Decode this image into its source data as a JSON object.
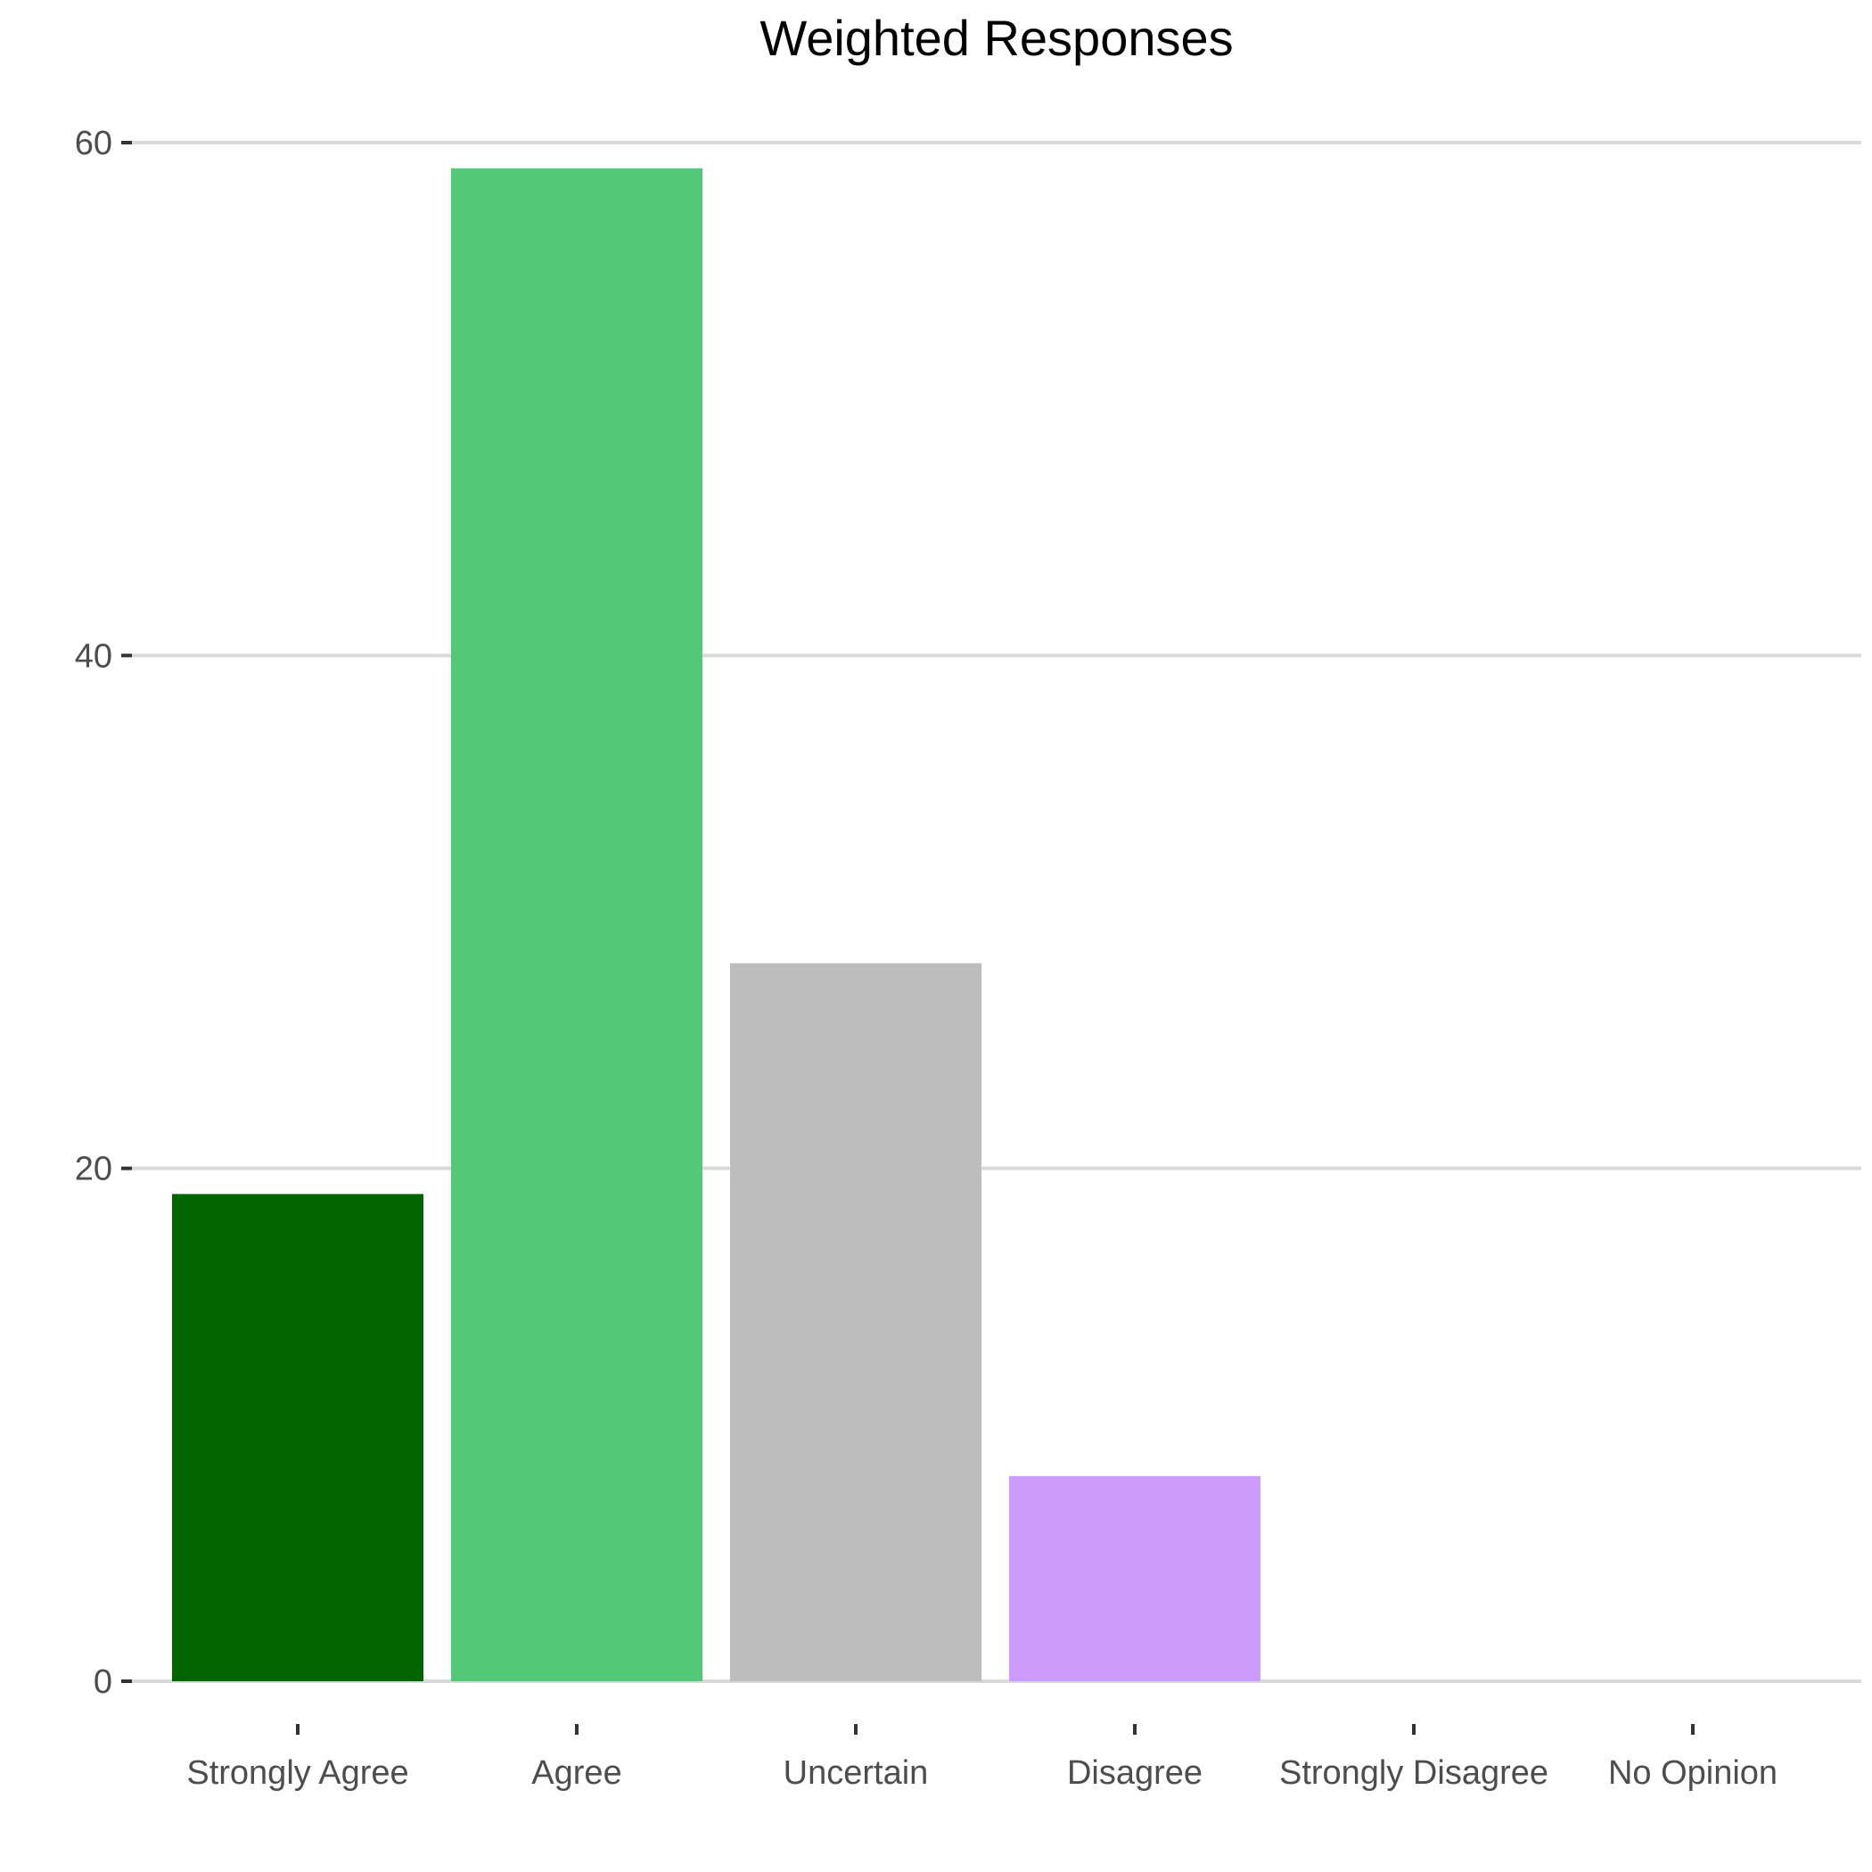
{
  "chart_data": {
    "type": "bar",
    "title": "Weighted Responses",
    "xlabel": "",
    "ylabel": "",
    "categories": [
      "Strongly Agree",
      "Agree",
      "Uncertain",
      "Disagree",
      "Strongly Disagree",
      "No Opinion"
    ],
    "values": [
      19,
      59,
      28,
      8,
      0,
      0
    ],
    "colors": [
      "#006400",
      "#52c878",
      "#bdbdbd",
      "#cc9cfc",
      "#ffffff",
      "#ffffff"
    ],
    "ylim": [
      0,
      60
    ],
    "yticks": [
      0,
      20,
      40,
      60
    ],
    "grid": true,
    "legend": "none"
  }
}
